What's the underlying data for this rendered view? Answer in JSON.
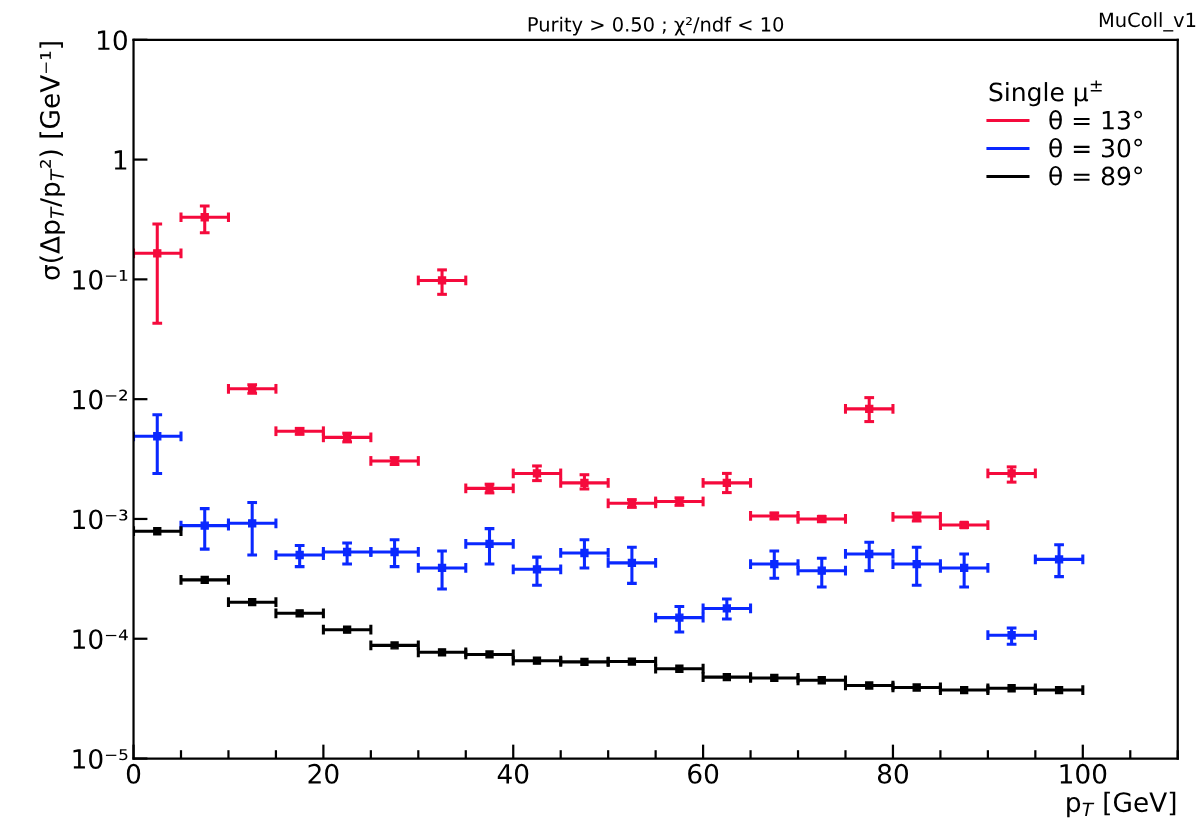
{
  "chart_data": {
    "type": "scatter",
    "title": "Purity > 0.50 ; χ²/ndf < 10",
    "annotations": [
      "MuColl_v1"
    ],
    "xlabel": "p$_{T}$ [GeV]",
    "ylabel": "σ(Δp$_{T}$/p$_{T}$²) [GeV⁻¹]",
    "legend_title": "Single μ$^{±}$",
    "x": [
      2.5,
      7.5,
      12.5,
      17.5,
      22.5,
      27.5,
      32.5,
      37.5,
      42.5,
      47.5,
      52.5,
      57.5,
      62.5,
      67.5,
      72.5,
      77.5,
      82.5,
      87.5,
      92.5,
      97.5
    ],
    "series": [
      {
        "name": "θ = 13°",
        "color": "#f50a3c",
        "values": [
          0.165,
          0.33,
          0.0122,
          0.0054,
          0.0048,
          0.00305,
          0.098,
          0.0018,
          0.0024,
          0.002,
          0.00135,
          0.0014,
          0.002,
          0.00106,
          0.001,
          0.0083,
          0.00104,
          0.00089,
          0.0024,
          null
        ],
        "errors": [
          [
            0.043,
            0.29
          ],
          [
            0.245,
            0.41
          ],
          [
            0.0112,
            0.0132
          ],
          [
            0.0051,
            0.0057
          ],
          [
            0.0044,
            0.0052
          ],
          [
            0.00285,
            0.00325
          ],
          [
            0.075,
            0.12
          ],
          [
            0.00165,
            0.00195
          ],
          [
            0.00209,
            0.00277
          ],
          [
            0.00178,
            0.00234
          ],
          [
            0.00125,
            0.00145
          ],
          [
            0.0013,
            0.0015
          ],
          [
            0.00166,
            0.0024
          ],
          [
            0.001,
            0.00112
          ],
          [
            0.00095,
            0.00105
          ],
          [
            0.0065,
            0.0103
          ],
          [
            0.00096,
            0.00112
          ],
          [
            0.00085,
            0.00093
          ],
          [
            0.00203,
            0.00272
          ],
          null
        ],
        "xerrors": [
          2.5,
          2.5,
          2.5,
          2.5,
          2.5,
          2.5,
          2.5,
          2.5,
          2.5,
          2.5,
          2.5,
          2.5,
          2.5,
          2.5,
          2.5,
          2.5,
          2.5,
          2.5,
          2.5,
          null
        ]
      },
      {
        "name": "θ = 30°",
        "color": "#0a28ff",
        "values": [
          0.0049,
          0.00088,
          0.00092,
          0.0005,
          0.00053,
          0.00053,
          0.00039,
          0.00062,
          0.00038,
          0.00052,
          0.00043,
          0.00015,
          0.000179,
          0.00042,
          0.00037,
          0.00051,
          0.00042,
          0.00039,
          0.000107,
          0.00046
        ],
        "errors": [
          [
            0.0024,
            0.0074
          ],
          [
            0.00056,
            0.00122
          ],
          [
            0.0005,
            0.00137
          ],
          [
            0.0004,
            0.0006
          ],
          [
            0.00042,
            0.00063
          ],
          [
            0.0004,
            0.00067
          ],
          [
            0.00026,
            0.00054
          ],
          [
            0.00042,
            0.00083
          ],
          [
            0.00028,
            0.00048
          ],
          [
            0.00039,
            0.00067
          ],
          [
            0.00029,
            0.00058
          ],
          [
            0.000114,
            0.000186
          ],
          [
            0.000146,
            0.000215
          ],
          [
            0.00032,
            0.00054
          ],
          [
            0.00027,
            0.00047
          ],
          [
            0.00037,
            0.00064
          ],
          [
            0.00028,
            0.00058
          ],
          [
            0.00027,
            0.00051
          ],
          [
            9e-05,
            0.000123
          ],
          [
            0.00033,
            0.00061
          ]
        ],
        "xerrors": [
          2.5,
          2.5,
          2.5,
          2.5,
          2.5,
          2.5,
          2.5,
          2.5,
          2.5,
          2.5,
          2.5,
          2.5,
          2.5,
          2.5,
          2.5,
          2.5,
          2.5,
          2.5,
          2.5,
          2.5
        ]
      },
      {
        "name": "θ = 89°",
        "color": "#000000",
        "values": [
          0.00079,
          0.00031,
          0.000202,
          0.000163,
          0.000119,
          8.8e-05,
          7.7e-05,
          7.4e-05,
          6.56e-05,
          6.41e-05,
          6.45e-05,
          5.62e-05,
          4.78e-05,
          4.71e-05,
          4.5e-05,
          4.07e-05,
          3.92e-05,
          3.73e-05,
          3.86e-05,
          3.73e-05
        ],
        "xerrors": [
          2.5,
          2.5,
          2.5,
          2.5,
          2.5,
          2.5,
          2.5,
          2.5,
          2.5,
          2.5,
          2.5,
          2.5,
          2.5,
          2.5,
          2.5,
          2.5,
          2.5,
          2.5,
          2.5,
          2.5
        ]
      }
    ],
    "marker": "square",
    "log": "y",
    "grid": false,
    "legend": "top right",
    "xlim": [
      0,
      110
    ],
    "xticks": [
      0,
      20,
      40,
      60,
      80,
      100
    ],
    "ylim": [
      1e-05,
      10
    ],
    "yticks": [
      {
        "value": 1e-05,
        "label": "10⁻⁵"
      },
      {
        "value": 0.0001,
        "label": "10⁻⁴"
      },
      {
        "value": 0.001,
        "label": "10⁻³"
      },
      {
        "value": 0.01,
        "label": "10⁻²"
      },
      {
        "value": 0.1,
        "label": "10⁻¹"
      },
      1,
      10
    ]
  }
}
